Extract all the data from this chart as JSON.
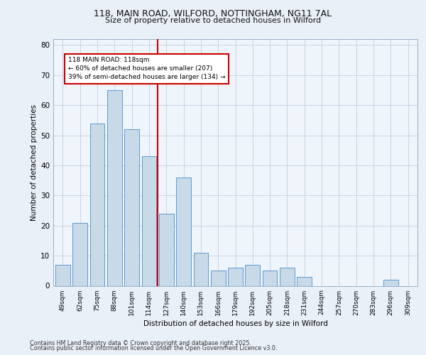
{
  "title1": "118, MAIN ROAD, WILFORD, NOTTINGHAM, NG11 7AL",
  "title2": "Size of property relative to detached houses in Wilford",
  "xlabel": "Distribution of detached houses by size in Wilford",
  "ylabel": "Number of detached properties",
  "categories": [
    "49sqm",
    "62sqm",
    "75sqm",
    "88sqm",
    "101sqm",
    "114sqm",
    "127sqm",
    "140sqm",
    "153sqm",
    "166sqm",
    "179sqm",
    "192sqm",
    "205sqm",
    "218sqm",
    "231sqm",
    "244sqm",
    "257sqm",
    "270sqm",
    "283sqm",
    "296sqm",
    "309sqm"
  ],
  "values": [
    7,
    21,
    54,
    65,
    52,
    43,
    24,
    36,
    11,
    5,
    6,
    7,
    5,
    6,
    3,
    0,
    0,
    0,
    0,
    2,
    0
  ],
  "bar_color": "#c8d9e8",
  "bar_edge_color": "#5b9bd5",
  "vline_x": 5.5,
  "annotation_text": "118 MAIN ROAD: 118sqm\n← 60% of detached houses are smaller (207)\n39% of semi-detached houses are larger (134) →",
  "annotation_box_color": "#ffffff",
  "annotation_box_edge": "#cc0000",
  "vline_color": "#cc0000",
  "ylim": [
    0,
    82
  ],
  "yticks": [
    0,
    10,
    20,
    30,
    40,
    50,
    60,
    70,
    80
  ],
  "footer1": "Contains HM Land Registry data © Crown copyright and database right 2025.",
  "footer2": "Contains public sector information licensed under the Open Government Licence v3.0.",
  "bg_color": "#eaf0f8",
  "plot_bg_color": "#f0f4fb",
  "grid_color": "#c8d4e4"
}
